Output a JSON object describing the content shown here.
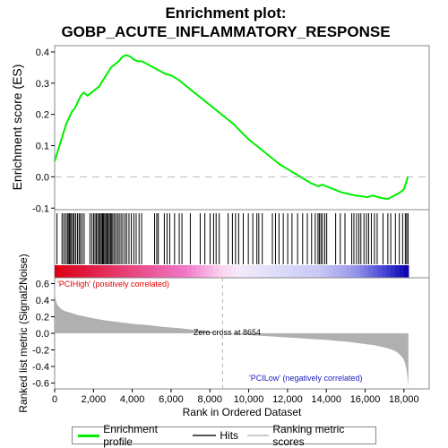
{
  "title_line1": "Enrichment plot:",
  "title_line2": "GOBP_ACUTE_INFLAMMATORY_RESPONSE",
  "colors": {
    "es_line": "#00ee00",
    "hits": "#000000",
    "metric_fill": "#b0b0b0",
    "pos_label": "#e00000",
    "neg_label": "#2020c0",
    "zero_dash": "#b0b0b0"
  },
  "chart_data": [
    {
      "type": "line",
      "name": "enrichment-score",
      "ylabel": "Enrichment score (ES)",
      "ylim": [
        -0.105,
        0.42
      ],
      "yticks": [
        "0.4",
        "0.3",
        "0.2",
        "0.1",
        "0.0",
        "-0.1"
      ],
      "x": [
        0,
        150,
        300,
        450,
        600,
        750,
        900,
        1050,
        1200,
        1350,
        1500,
        1700,
        1900,
        2100,
        2300,
        2500,
        2700,
        2900,
        3100,
        3300,
        3500,
        3700,
        3900,
        4100,
        4300,
        4500,
        4800,
        5100,
        5400,
        5700,
        6000,
        6400,
        6800,
        7200,
        7600,
        8000,
        8400,
        8800,
        9200,
        9600,
        10000,
        10400,
        10800,
        11200,
        11600,
        12000,
        12400,
        12800,
        13200,
        13600,
        13800,
        14000,
        14400,
        14800,
        15200,
        15500,
        15800,
        16100,
        16400,
        16700,
        17000,
        17200,
        17500,
        17800,
        18000,
        18100,
        18200
      ],
      "y": [
        0.05,
        0.08,
        0.11,
        0.14,
        0.17,
        0.19,
        0.21,
        0.22,
        0.24,
        0.26,
        0.27,
        0.26,
        0.27,
        0.28,
        0.29,
        0.31,
        0.33,
        0.35,
        0.36,
        0.37,
        0.385,
        0.39,
        0.385,
        0.375,
        0.37,
        0.37,
        0.36,
        0.35,
        0.34,
        0.33,
        0.325,
        0.31,
        0.29,
        0.27,
        0.25,
        0.23,
        0.21,
        0.19,
        0.17,
        0.145,
        0.12,
        0.1,
        0.08,
        0.06,
        0.04,
        0.025,
        0.01,
        -0.005,
        -0.02,
        -0.03,
        -0.025,
        -0.03,
        -0.04,
        -0.05,
        -0.055,
        -0.06,
        -0.062,
        -0.065,
        -0.06,
        -0.065,
        -0.07,
        -0.07,
        -0.06,
        -0.05,
        -0.04,
        -0.02,
        0.0
      ]
    },
    {
      "type": "bar",
      "name": "hits",
      "positions": [
        120,
        380,
        470,
        560,
        650,
        700,
        760,
        820,
        870,
        950,
        1010,
        1090,
        1180,
        1260,
        1330,
        1420,
        1520,
        1820,
        1920,
        2010,
        2080,
        2150,
        2220,
        2290,
        2350,
        2410,
        2470,
        2520,
        2580,
        2640,
        2700,
        2760,
        2820,
        2880,
        2940,
        3000,
        3080,
        3160,
        3250,
        3330,
        3420,
        3510,
        3620,
        3710,
        3830,
        3950,
        4080,
        4200,
        4350,
        4480,
        5150,
        5260,
        5340,
        5650,
        5790,
        5930,
        6180,
        6420,
        6560,
        6990,
        7500,
        7740,
        8010,
        8190,
        8320,
        8480,
        8940,
        9160,
        9320,
        9480,
        9720,
        9980,
        10210,
        10420,
        10520,
        10700,
        11220,
        11380,
        11560,
        11780,
        12010,
        12230,
        12520,
        12780,
        13020,
        13240,
        13430,
        13570,
        13640,
        13720,
        13800,
        13920,
        14020,
        14480,
        14720,
        14960,
        15310,
        15420,
        15560,
        15680,
        15780,
        15940,
        16070,
        16180,
        16320,
        16480,
        16620,
        16920,
        17170,
        17320,
        17560,
        17760,
        17930,
        18070,
        18140,
        18210
      ]
    },
    {
      "type": "area",
      "name": "ranked-list-metric",
      "xlabel": "Rank in Ordered Dataset",
      "ylabel": "Ranked list metric (Signal2Noise)",
      "xlim": [
        0,
        19300
      ],
      "ylim": [
        -0.67,
        0.67
      ],
      "xticks": [
        "0",
        "2,000",
        "4,000",
        "6,000",
        "8,000",
        "10,000",
        "12,000",
        "14,000",
        "16,000",
        "18,000"
      ],
      "yticks": [
        "0.6",
        "0.4",
        "0.2",
        "0.0",
        "-0.2",
        "-0.4",
        "-0.6"
      ],
      "x": [
        0,
        10,
        30,
        80,
        150,
        300,
        500,
        800,
        1200,
        1600,
        2000,
        2500,
        3000,
        3500,
        4000,
        4500,
        5000,
        5500,
        6000,
        6500,
        7000,
        7500,
        8000,
        8654,
        9000,
        10000,
        11000,
        12000,
        13000,
        14000,
        15000,
        16000,
        16500,
        17000,
        17300,
        17600,
        17800,
        17950,
        18050,
        18120,
        18180,
        18230
      ],
      "y": [
        0.75,
        0.55,
        0.45,
        0.38,
        0.34,
        0.3,
        0.27,
        0.25,
        0.22,
        0.2,
        0.18,
        0.16,
        0.145,
        0.13,
        0.115,
        0.105,
        0.095,
        0.08,
        0.07,
        0.06,
        0.045,
        0.035,
        0.02,
        0.0,
        -0.005,
        -0.02,
        -0.035,
        -0.05,
        -0.065,
        -0.08,
        -0.1,
        -0.13,
        -0.145,
        -0.17,
        -0.19,
        -0.22,
        -0.26,
        -0.3,
        -0.35,
        -0.42,
        -0.52,
        -0.65
      ]
    }
  ],
  "zero_cross_rank": 8654,
  "zero_cross_text": "Zero cross at 8654",
  "pos_text": "'PCIHigh' (positively correlated)",
  "neg_text": "'PCILow' (negatively correlated)",
  "legend": {
    "enrichment": "Enrichment profile",
    "hits": "Hits",
    "ranking": "Ranking metric scores"
  }
}
